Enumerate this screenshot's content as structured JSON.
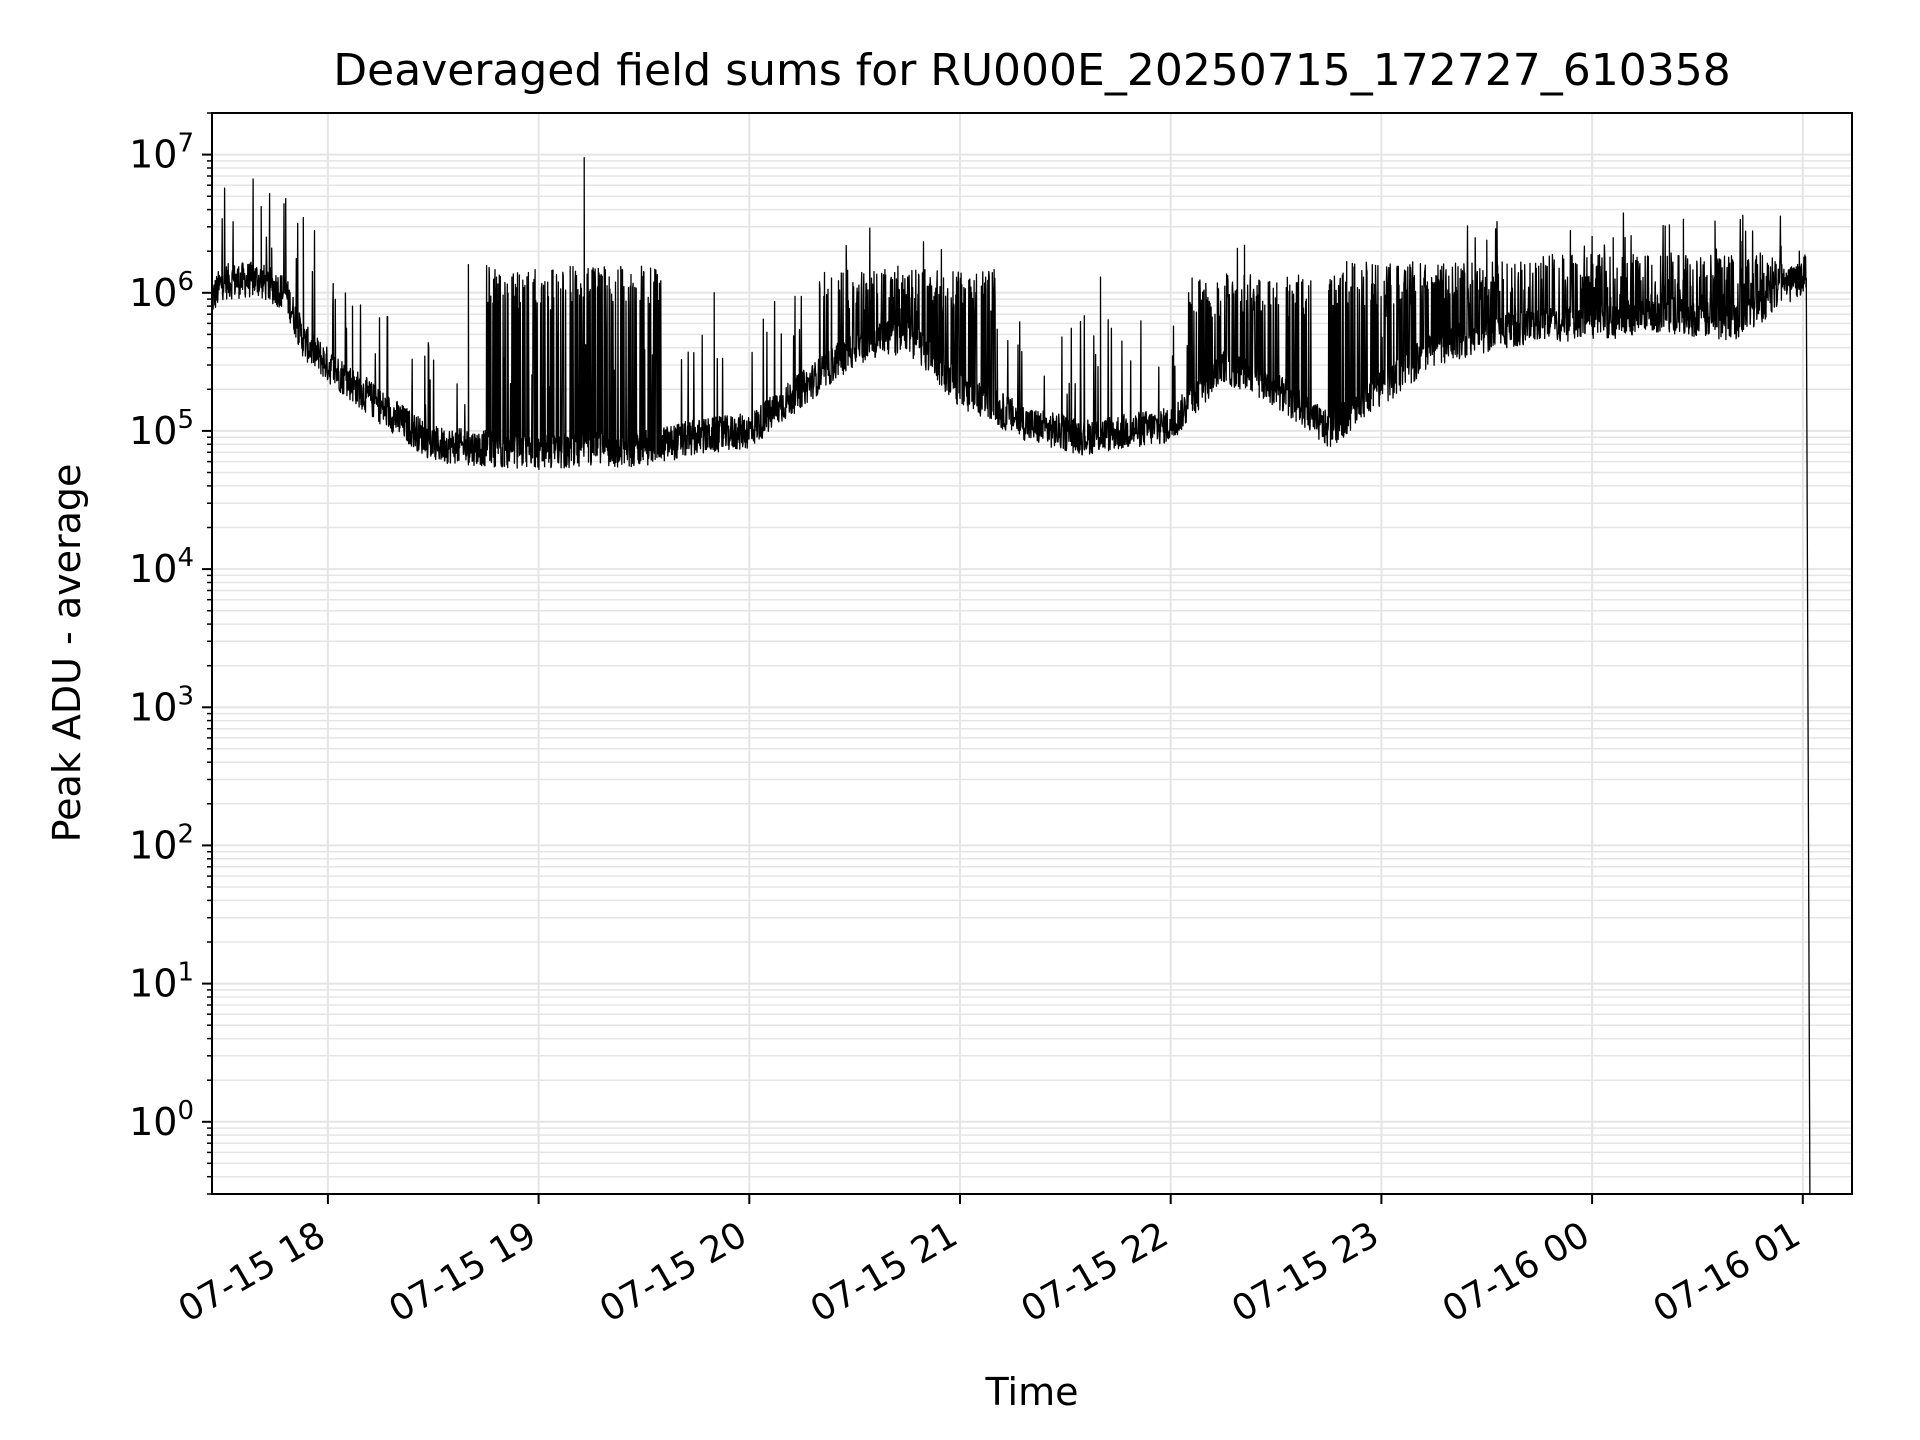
{
  "chart_data": {
    "type": "line",
    "title": "Deaveraged field sums for RU000E_20250715_172727_610358",
    "xlabel": "Time",
    "ylabel": "Peak ADU - average",
    "yscale": "log",
    "ylim": [
      0.3,
      20000000
    ],
    "xlim": [
      "2025-07-15 17:27",
      "2025-07-16 01:14"
    ],
    "grid": true,
    "line_color": "#000000",
    "grid_color": "#e5e5e5",
    "x_ticks": [
      {
        "t": "2025-07-15 18:00",
        "label": "07-15 18"
      },
      {
        "t": "2025-07-15 19:00",
        "label": "07-15 19"
      },
      {
        "t": "2025-07-15 20:00",
        "label": "07-15 20"
      },
      {
        "t": "2025-07-15 21:00",
        "label": "07-15 21"
      },
      {
        "t": "2025-07-15 22:00",
        "label": "07-15 22"
      },
      {
        "t": "2025-07-15 23:00",
        "label": "07-15 23"
      },
      {
        "t": "2025-07-16 00:00",
        "label": "07-16 00"
      },
      {
        "t": "2025-07-16 01:00",
        "label": "07-16 01"
      }
    ],
    "y_ticks": [
      {
        "value": 1,
        "base": "10",
        "exp": "0"
      },
      {
        "value": 10,
        "base": "10",
        "exp": "1"
      },
      {
        "value": 100,
        "base": "10",
        "exp": "2"
      },
      {
        "value": 1000,
        "base": "10",
        "exp": "3"
      },
      {
        "value": 10000,
        "base": "10",
        "exp": "4"
      },
      {
        "value": 100000,
        "base": "10",
        "exp": "5"
      },
      {
        "value": 1000000,
        "base": "10",
        "exp": "6"
      },
      {
        "value": 10000000,
        "base": "10",
        "exp": "7"
      }
    ],
    "series": [
      {
        "baseline": [
          {
            "t": "2025-07-15 17:27",
            "y": 900000
          },
          {
            "t": "2025-07-15 17:30",
            "y": 1200000
          },
          {
            "t": "2025-07-15 17:40",
            "y": 1250000
          },
          {
            "t": "2025-07-15 17:48",
            "y": 1000000
          },
          {
            "t": "2025-07-15 17:53",
            "y": 450000
          },
          {
            "t": "2025-07-15 18:00",
            "y": 300000
          },
          {
            "t": "2025-07-15 18:15",
            "y": 150000
          },
          {
            "t": "2025-07-15 18:30",
            "y": 80000
          },
          {
            "t": "2025-07-15 19:00",
            "y": 70000
          },
          {
            "t": "2025-07-15 19:30",
            "y": 75000
          },
          {
            "t": "2025-07-15 19:45",
            "y": 90000
          },
          {
            "t": "2025-07-15 20:00",
            "y": 100000
          },
          {
            "t": "2025-07-15 20:15",
            "y": 200000
          },
          {
            "t": "2025-07-15 20:30",
            "y": 400000
          },
          {
            "t": "2025-07-15 20:45",
            "y": 500000
          },
          {
            "t": "2025-07-15 21:00",
            "y": 200000
          },
          {
            "t": "2025-07-15 21:20",
            "y": 110000
          },
          {
            "t": "2025-07-15 21:35",
            "y": 90000
          },
          {
            "t": "2025-07-15 22:00",
            "y": 110000
          },
          {
            "t": "2025-07-15 22:15",
            "y": 300000
          },
          {
            "t": "2025-07-15 22:30",
            "y": 200000
          },
          {
            "t": "2025-07-15 22:45",
            "y": 100000
          },
          {
            "t": "2025-07-15 23:00",
            "y": 200000
          },
          {
            "t": "2025-07-15 23:15",
            "y": 400000
          },
          {
            "t": "2025-07-15 23:30",
            "y": 500000
          },
          {
            "t": "2025-07-15 23:45",
            "y": 600000
          },
          {
            "t": "2025-07-16 00:00",
            "y": 600000
          },
          {
            "t": "2025-07-16 00:20",
            "y": 700000
          },
          {
            "t": "2025-07-16 00:40",
            "y": 600000
          },
          {
            "t": "2025-07-16 01:00",
            "y": 1300000
          },
          {
            "t": "2025-07-16 01:01",
            "y": 1500000
          },
          {
            "t": "2025-07-16 01:02",
            "y": 0.3
          }
        ],
        "spikes": [
          {
            "t": "2025-07-15 17:41",
            "y": 4200000
          },
          {
            "t": "2025-07-15 17:44",
            "y": 2100000
          },
          {
            "t": "2025-07-15 17:48",
            "y": 4800000
          },
          {
            "t": "2025-07-15 17:53",
            "y": 3500000
          },
          {
            "t": "2025-07-15 18:07",
            "y": 800000
          },
          {
            "t": "2025-07-15 18:40",
            "y": 1600000
          },
          {
            "t": "2025-07-15 19:13",
            "y": 9500000
          },
          {
            "t": "2025-07-15 19:50",
            "y": 1000000
          },
          {
            "t": "2025-07-15 20:20",
            "y": 1200000
          },
          {
            "t": "2025-07-15 21:40",
            "y": 1300000
          },
          {
            "t": "2025-07-15 22:08",
            "y": 1200000
          },
          {
            "t": "2025-07-15 22:21",
            "y": 2200000
          },
          {
            "t": "2025-07-15 23:30",
            "y": 2400000
          },
          {
            "t": "2025-07-16 00:06",
            "y": 2500000
          },
          {
            "t": "2025-07-16 00:22",
            "y": 3100000
          },
          {
            "t": "2025-07-16 00:26",
            "y": 3400000
          },
          {
            "t": "2025-07-16 00:35",
            "y": 3300000
          },
          {
            "t": "2025-07-16 00:59",
            "y": 2000000
          }
        ],
        "bursty_segments": [
          {
            "t_start": "2025-07-15 18:45",
            "t_end": "2025-07-15 19:35",
            "top": 1500000
          },
          {
            "t_start": "2025-07-15 20:25",
            "t_end": "2025-07-15 21:10",
            "top": 1400000
          },
          {
            "t_start": "2025-07-15 22:05",
            "t_end": "2025-07-15 22:40",
            "top": 1300000
          },
          {
            "t_start": "2025-07-15 22:45",
            "t_end": "2025-07-15 23:45",
            "top": 1600000
          },
          {
            "t_start": "2025-07-15 23:45",
            "t_end": "2025-07-16 00:58",
            "top": 1800000
          }
        ]
      }
    ]
  }
}
